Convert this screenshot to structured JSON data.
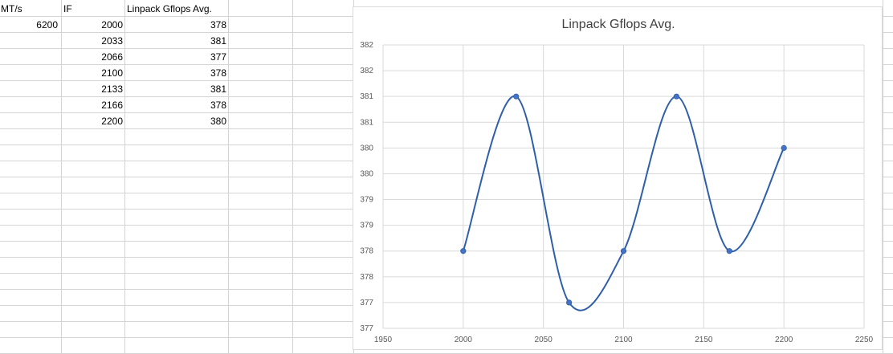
{
  "sheet": {
    "headers": [
      "MT/s",
      "IF",
      "Linpack Gflops Avg."
    ],
    "rows": [
      [
        "6200",
        "2000",
        "378"
      ],
      [
        "",
        "2033",
        "381"
      ],
      [
        "",
        "2066",
        "377"
      ],
      [
        "",
        "2100",
        "378"
      ],
      [
        "",
        "2133",
        "381"
      ],
      [
        "",
        "2166",
        "378"
      ],
      [
        "",
        "2200",
        "380"
      ]
    ]
  },
  "colors": {
    "gridline": "#d4d4d4",
    "series": "#2e5fa8",
    "marker": "#4472c4",
    "chart_grid": "#d9d9d9"
  },
  "chart_data": {
    "type": "scatter",
    "title": "Linpack Gflops Avg.",
    "xlabel": "",
    "ylabel": "",
    "smooth_line": true,
    "grid": true,
    "legend": "none",
    "x": [
      2000,
      2033,
      2066,
      2100,
      2133,
      2166,
      2200
    ],
    "series": [
      {
        "values": [
          378,
          381,
          377,
          378,
          381,
          378,
          380
        ]
      }
    ],
    "xlim": [
      1950,
      2250
    ],
    "ylim": [
      376.5,
      382
    ],
    "x_ticks": [
      1950,
      2000,
      2050,
      2100,
      2150,
      2200,
      2250
    ],
    "y_ticks": [
      376.5,
      377,
      377.5,
      378,
      378.5,
      379,
      379.5,
      380,
      380.5,
      381,
      381.5,
      382
    ],
    "y_tick_labels": [
      "377",
      "377",
      "378",
      "378",
      "379",
      "379",
      "380",
      "380",
      "381",
      "381",
      "382",
      "382"
    ]
  }
}
